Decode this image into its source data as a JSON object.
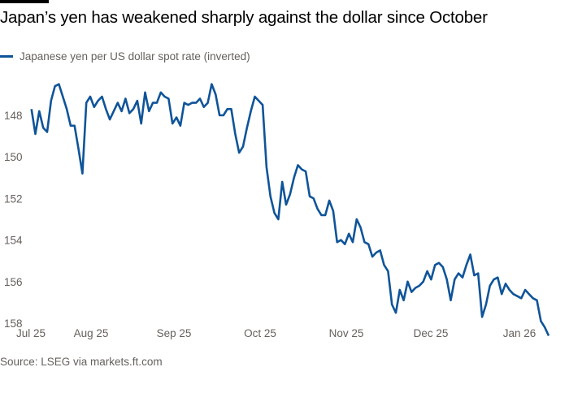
{
  "chart_data": {
    "type": "line",
    "title": "Japan’s yen has weakened sharply against the dollar since October",
    "source": "Source: LSEG via markets.ft.com",
    "xlabel": "",
    "ylabel": "",
    "x_tick_labels": [
      "Jul 25",
      "Aug 25",
      "Sep 25",
      "Oct 25",
      "Nov 25",
      "Dec 25",
      "Jan 26"
    ],
    "y_ticks": [
      148,
      150,
      152,
      154,
      156,
      158
    ],
    "ylim": [
      146.0,
      158.8
    ],
    "y_inverted": true,
    "grid": false,
    "legend_position": "top-left",
    "colors": {
      "line": "#0f5499",
      "text": "#66605c",
      "baseline": "#ccc1b7"
    },
    "series": [
      {
        "name": "Japanese yen per US dollar spot rate (inverted)",
        "values": [
          147.7,
          148.9,
          147.8,
          148.6,
          148.8,
          147.3,
          146.6,
          146.5,
          147.1,
          147.7,
          148.5,
          148.5,
          149.6,
          150.8,
          147.4,
          147.1,
          147.6,
          147.3,
          147.1,
          147.7,
          148.2,
          147.8,
          147.4,
          147.8,
          147.2,
          147.9,
          147.7,
          147.3,
          148.4,
          146.9,
          147.8,
          147.4,
          147.4,
          146.9,
          147.1,
          147.2,
          148.4,
          148.1,
          148.5,
          147.4,
          147.5,
          147.4,
          147.4,
          147.2,
          147.6,
          147.4,
          146.5,
          147.0,
          148.0,
          148.0,
          147.7,
          147.7,
          148.9,
          149.8,
          149.5,
          148.6,
          147.8,
          147.1,
          147.3,
          147.5,
          150.5,
          151.9,
          152.7,
          153.0,
          151.2,
          152.3,
          151.8,
          151.0,
          150.4,
          150.6,
          150.7,
          151.9,
          152.0,
          152.5,
          152.8,
          152.8,
          152.1,
          152.6,
          154.1,
          154.0,
          154.2,
          153.7,
          154.1,
          153.0,
          153.4,
          154.1,
          154.2,
          154.8,
          154.6,
          154.5,
          155.2,
          155.5,
          157.1,
          157.5,
          156.4,
          156.9,
          156.0,
          156.5,
          156.3,
          156.2,
          156.0,
          155.5,
          155.9,
          155.2,
          155.1,
          155.3,
          155.9,
          156.9,
          155.9,
          155.6,
          155.8,
          155.2,
          154.7,
          155.7,
          155.6,
          157.7,
          157.1,
          156.2,
          155.9,
          155.8,
          156.6,
          156.1,
          156.4,
          156.6,
          156.7,
          156.8,
          156.4,
          156.6,
          156.8,
          156.9,
          157.9,
          158.2,
          158.6
        ]
      }
    ]
  }
}
